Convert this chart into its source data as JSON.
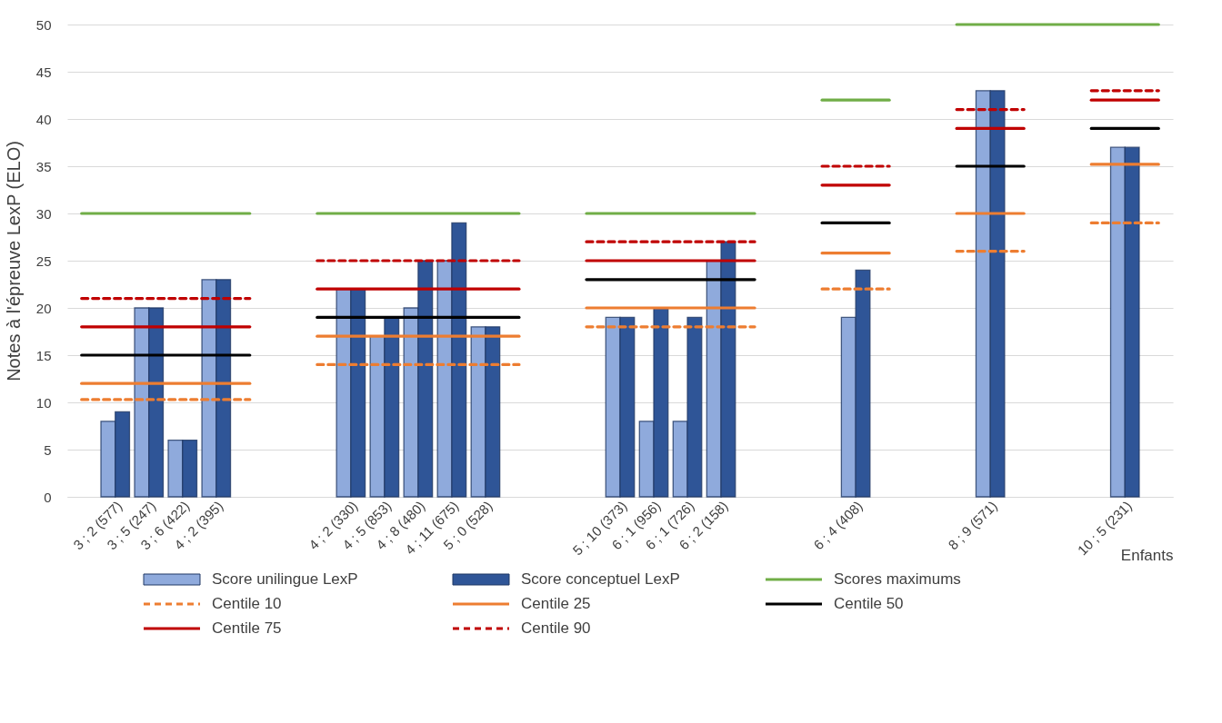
{
  "chart_data": {
    "type": "bar",
    "xlabel": "Enfants",
    "ylabel": "Notes à l'épreuve LexP (ELO)",
    "categories": [
      null,
      "3 ; 2 (577)",
      "3 ; 5 (247)",
      "3 ; 6 (422)",
      "4 ; 2 (395)",
      null,
      null,
      null,
      "4 ; 2 (330)",
      "4 ; 5 (853)",
      "4 ; 8 (480)",
      "4 ; 11 (675)",
      "5 ; 0 (528)",
      null,
      null,
      null,
      "5 ; 10 (373)",
      "6 ; 1 (956)",
      "6 ; 1 (726)",
      "6 ; 2 (158)",
      null,
      null,
      null,
      "6 ; 4 (408)",
      null,
      null,
      null,
      "8 ; 9 (571)",
      null,
      null,
      null,
      "10 ; 5 (231)",
      null
    ],
    "ylim": [
      0,
      50
    ],
    "yticks": [
      0,
      5,
      10,
      15,
      20,
      25,
      30,
      35,
      40,
      45,
      50
    ],
    "grid": "y",
    "legend": "bottom",
    "series": [
      {
        "name": "Score unilingue LexP",
        "color": "#8faadc",
        "values": [
          null,
          8,
          20,
          6,
          23,
          null,
          null,
          null,
          22,
          17,
          20,
          25,
          18,
          null,
          null,
          null,
          19,
          8,
          8,
          25,
          null,
          null,
          null,
          19,
          null,
          null,
          null,
          43,
          null,
          null,
          null,
          37,
          null
        ]
      },
      {
        "name": "Score conceptuel LexP",
        "color": "#2f5597",
        "values": [
          null,
          9,
          20,
          6,
          23,
          null,
          null,
          null,
          22,
          19,
          25,
          29,
          18,
          null,
          null,
          null,
          19,
          20,
          19,
          27,
          null,
          null,
          null,
          24,
          null,
          null,
          null,
          43,
          null,
          null,
          null,
          37,
          null
        ]
      },
      {
        "name": "Scores maximums",
        "type": "line",
        "line_style": "solid",
        "color": "#70ad47",
        "values": [
          30,
          30,
          30,
          30,
          30,
          30,
          null,
          30,
          30,
          30,
          30,
          30,
          30,
          30,
          null,
          30,
          30,
          30,
          30,
          30,
          30,
          null,
          42,
          42,
          42,
          null,
          50,
          50,
          50,
          50,
          50,
          50,
          50
        ]
      },
      {
        "name": "Centile 10",
        "type": "line",
        "line_style": "dashed",
        "color": "#ed7d31",
        "values": [
          10.3,
          10.3,
          10.3,
          10.3,
          10.3,
          10.3,
          null,
          14,
          14,
          14,
          14,
          14,
          14,
          14,
          null,
          18,
          18,
          18,
          18,
          18,
          18,
          null,
          22,
          22,
          22,
          null,
          26,
          26,
          26,
          null,
          29,
          29,
          29
        ]
      },
      {
        "name": "Centile 25",
        "type": "line",
        "line_style": "solid",
        "color": "#ed7d31",
        "values": [
          12,
          12,
          12,
          12,
          12,
          12,
          null,
          17,
          17,
          17,
          17,
          17,
          17,
          17,
          null,
          20,
          20,
          20,
          20,
          20,
          20,
          null,
          25.8,
          25.8,
          25.8,
          null,
          30,
          30,
          30,
          null,
          35.2,
          35.2,
          35.2
        ]
      },
      {
        "name": "Centile 50",
        "type": "line",
        "line_style": "solid",
        "color": "#000000",
        "values": [
          15,
          15,
          15,
          15,
          15,
          15,
          null,
          19,
          19,
          19,
          19,
          19,
          19,
          19,
          null,
          23,
          23,
          23,
          23,
          23,
          23,
          null,
          29,
          29,
          29,
          null,
          35,
          35,
          35,
          null,
          39,
          39,
          39
        ]
      },
      {
        "name": "Centile 75",
        "type": "line",
        "line_style": "solid",
        "color": "#c00000",
        "values": [
          18,
          18,
          18,
          18,
          18,
          18,
          null,
          22,
          22,
          22,
          22,
          22,
          22,
          22,
          null,
          25,
          25,
          25,
          25,
          25,
          25,
          null,
          33,
          33,
          33,
          null,
          39,
          39,
          39,
          null,
          42,
          42,
          42
        ]
      },
      {
        "name": "Centile 90",
        "type": "line",
        "line_style": "dashed",
        "color": "#c00000",
        "values": [
          21,
          21,
          21,
          21,
          21,
          21,
          null,
          25,
          25,
          25,
          25,
          25,
          25,
          25,
          null,
          27,
          27,
          27,
          27,
          27,
          27,
          null,
          35,
          35,
          35,
          null,
          41,
          41,
          41,
          null,
          43,
          43,
          43
        ]
      }
    ]
  }
}
